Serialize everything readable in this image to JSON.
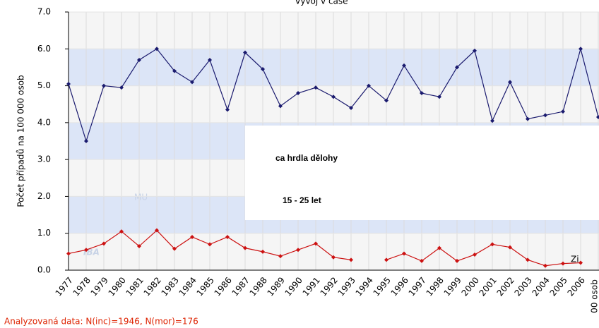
{
  "chart_data": {
    "type": "line",
    "title": "Vývoj v čase",
    "ylabel": "Počet případů na 100 000 osob",
    "y2label": "00 osob",
    "legend_fragment": "Zi",
    "overlay": [
      "ca  hrdla  dělohy",
      "15 - 25 let"
    ],
    "footnote": "Analyzovaná data: N(inc)=1946, N(mor)=176",
    "watermark": [
      "IBA",
      "MU"
    ],
    "categories": [
      "1977",
      "1978",
      "1979",
      "1980",
      "1981",
      "1982",
      "1983",
      "1984",
      "1985",
      "1986",
      "1987",
      "1988",
      "1989",
      "1990",
      "1991",
      "1992",
      "1993",
      "1994",
      "1995",
      "1996",
      "1997",
      "1998",
      "1999",
      "2000",
      "2001",
      "2002",
      "2003",
      "2004",
      "2005",
      "2006",
      null
    ],
    "series": [
      {
        "color": "#1a1a6e",
        "values": [
          5.05,
          3.5,
          5.0,
          4.95,
          5.7,
          6.0,
          5.4,
          5.1,
          5.7,
          4.35,
          5.9,
          5.45,
          4.45,
          4.8,
          4.95,
          4.7,
          4.4,
          5.0,
          4.6,
          5.55,
          4.8,
          4.7,
          5.5,
          5.95,
          4.05,
          5.1,
          4.1,
          4.2,
          4.3,
          6.0,
          4.15
        ]
      },
      {
        "color": "#cc1111",
        "values": [
          0.45,
          0.55,
          0.72,
          1.05,
          0.65,
          1.08,
          0.58,
          0.9,
          0.7,
          0.9,
          0.6,
          0.5,
          0.38,
          0.55,
          0.72,
          0.35,
          0.28,
          null,
          0.28,
          0.45,
          0.25,
          0.6,
          0.25,
          0.42,
          0.7,
          0.62,
          0.28,
          0.12,
          0.18,
          0.2,
          null
        ]
      }
    ],
    "ylim": [
      0,
      7
    ],
    "yticks": [
      {
        "value": 0,
        "label": "0.0"
      },
      {
        "value": 1,
        "label": "1.0"
      },
      {
        "value": 2,
        "label": "2.0"
      },
      {
        "value": 3,
        "label": "3.0"
      },
      {
        "value": 4,
        "label": "4.0"
      },
      {
        "value": 5,
        "label": "5.0"
      },
      {
        "value": 6,
        "label": "6.0"
      },
      {
        "value": 7,
        "label": "7.0"
      }
    ],
    "grid": true
  }
}
